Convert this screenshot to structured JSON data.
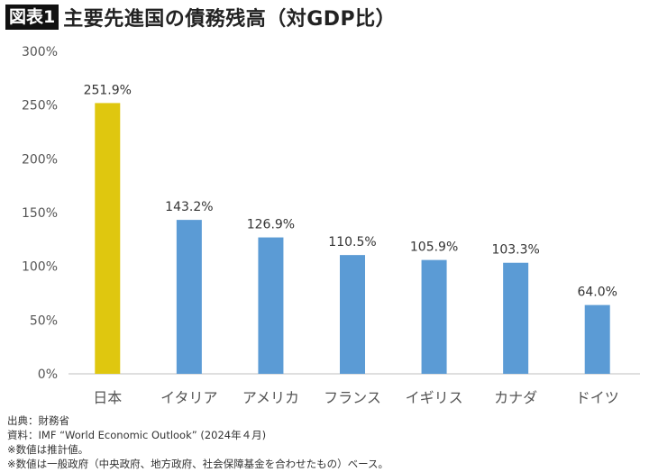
{
  "header": {
    "badge": "図表1",
    "title": "主要先進国の債務残高（対GDP比）"
  },
  "chart_data": {
    "type": "bar",
    "title": "主要先進国の債務残高（対GDP比）",
    "categories": [
      "日本",
      "イタリア",
      "アメリカ",
      "フランス",
      "イギリス",
      "カナダ",
      "ドイツ"
    ],
    "values": [
      251.9,
      143.2,
      126.9,
      110.5,
      105.9,
      103.3,
      64.0
    ],
    "data_labels": [
      "251.9%",
      "143.2%",
      "126.9%",
      "110.5%",
      "105.9%",
      "103.3%",
      "64.0%"
    ],
    "ylim": [
      0,
      300
    ],
    "yticks": [
      0,
      50,
      100,
      150,
      200,
      250,
      300
    ],
    "ytick_labels": [
      "0%",
      "50%",
      "100%",
      "150%",
      "200%",
      "250%",
      "300%"
    ],
    "grid": false,
    "colors": {
      "highlight": "#dfc70f",
      "default": "#5b9bd5"
    },
    "highlight_index": 0
  },
  "notes": [
    "出典：財務省",
    "資料：IMF “World Economic Outlook” (2024年４月)",
    "※数値は推計値。",
    "※数値は一般政府（中央政府、地方政府、社会保障基金を合わせたもの）ベース。"
  ]
}
